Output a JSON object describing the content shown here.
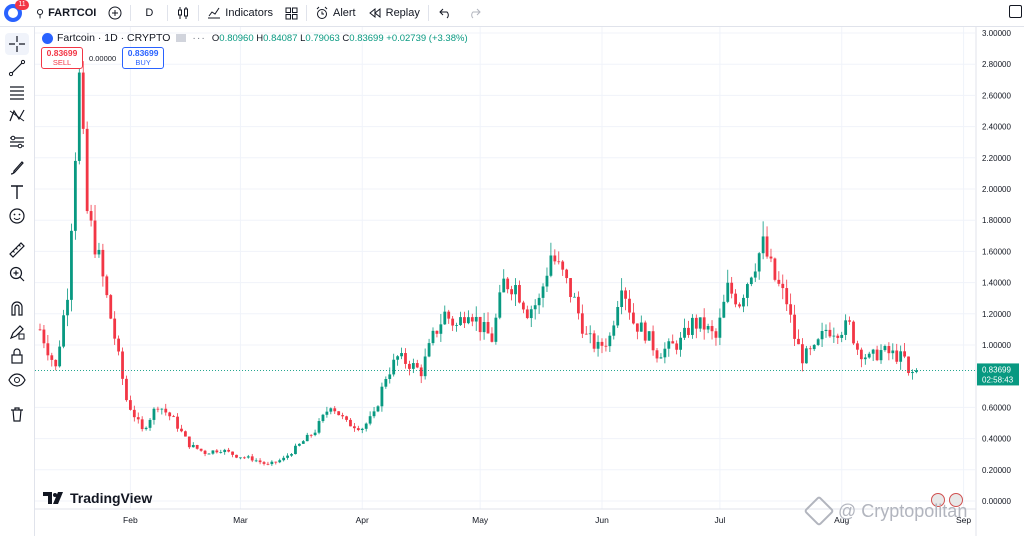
{
  "topbar": {
    "notifications": "11",
    "symbol": "FARTCOI",
    "interval": "D",
    "indicators_label": "Indicators",
    "alert_label": "Alert",
    "replay_label": "Replay"
  },
  "legend": {
    "title": "Fartcoin · 1D · CRYPTO",
    "open_key": "O",
    "open": "0.80960",
    "high_key": "H",
    "high": "0.84087",
    "low_key": "L",
    "low": "0.79063",
    "close_key": "C",
    "close": "0.83699",
    "change": "+0.02739 (+3.38%)"
  },
  "trade": {
    "sell_price": "0.83699",
    "sell_label": "SELL",
    "spread": "0.00000",
    "buy_price": "0.83699",
    "buy_label": "BUY"
  },
  "brand": {
    "logo_text": "TradingView"
  },
  "watermark": {
    "text": "@ Cryptopolitan"
  },
  "chart_data": {
    "type": "candlestick",
    "ylim": [
      0,
      3.0
    ],
    "y_ticks": [
      {
        "v": 3.0,
        "label": "3.00000"
      },
      {
        "v": 2.8,
        "label": "2.80000"
      },
      {
        "v": 2.6,
        "label": "2.60000"
      },
      {
        "v": 2.4,
        "label": "2.40000"
      },
      {
        "v": 2.2,
        "label": "2.20000"
      },
      {
        "v": 2.0,
        "label": "2.00000"
      },
      {
        "v": 1.8,
        "label": "1.80000"
      },
      {
        "v": 1.6,
        "label": "1.60000"
      },
      {
        "v": 1.4,
        "label": "1.40000"
      },
      {
        "v": 1.2,
        "label": "1.20000"
      },
      {
        "v": 1.0,
        "label": "1.00000"
      },
      {
        "v": 0.6,
        "label": "0.60000"
      },
      {
        "v": 0.4,
        "label": "0.40000"
      },
      {
        "v": 0.2,
        "label": "0.20000"
      },
      {
        "v": 0.0,
        "label": "0.00000"
      }
    ],
    "x_ticks": [
      {
        "day": 23,
        "label": "Feb"
      },
      {
        "day": 51,
        "label": "Mar"
      },
      {
        "day": 82,
        "label": "Apr"
      },
      {
        "day": 112,
        "label": "May"
      },
      {
        "day": 143,
        "label": "Jun"
      },
      {
        "day": 173,
        "label": "Jul"
      },
      {
        "day": 204,
        "label": "Aug"
      },
      {
        "day": 235,
        "label": "Sep"
      }
    ],
    "last_price": {
      "value": 0.83699,
      "label": "0.83699",
      "countdown": "02:58:43"
    },
    "colors": {
      "up": "#089981",
      "down": "#f23645",
      "grid": "#f0f3fa",
      "axis_text": "#131722"
    },
    "keypoints": [
      [
        0,
        1.1
      ],
      [
        4,
        0.85
      ],
      [
        7,
        1.35
      ],
      [
        10,
        2.7
      ],
      [
        12,
        1.85
      ],
      [
        15,
        1.55
      ],
      [
        19,
        1.05
      ],
      [
        22,
        0.65
      ],
      [
        26,
        0.45
      ],
      [
        30,
        0.62
      ],
      [
        34,
        0.52
      ],
      [
        38,
        0.36
      ],
      [
        42,
        0.31
      ],
      [
        46,
        0.33
      ],
      [
        50,
        0.29
      ],
      [
        54,
        0.27
      ],
      [
        58,
        0.23
      ],
      [
        62,
        0.27
      ],
      [
        66,
        0.36
      ],
      [
        70,
        0.45
      ],
      [
        74,
        0.62
      ],
      [
        78,
        0.5
      ],
      [
        82,
        0.47
      ],
      [
        85,
        0.55
      ],
      [
        88,
        0.8
      ],
      [
        91,
        0.92
      ],
      [
        94,
        0.88
      ],
      [
        97,
        0.83
      ],
      [
        100,
        1.05
      ],
      [
        103,
        1.2
      ],
      [
        106,
        1.12
      ],
      [
        109,
        1.24
      ],
      [
        112,
        1.12
      ],
      [
        115,
        1.04
      ],
      [
        118,
        1.4
      ],
      [
        121,
        1.38
      ],
      [
        124,
        1.22
      ],
      [
        127,
        1.28
      ],
      [
        130,
        1.58
      ],
      [
        133,
        1.45
      ],
      [
        136,
        1.28
      ],
      [
        139,
        1.05
      ],
      [
        142,
        0.98
      ],
      [
        145,
        1.05
      ],
      [
        148,
        1.42
      ],
      [
        151,
        1.15
      ],
      [
        154,
        1.08
      ],
      [
        157,
        0.95
      ],
      [
        160,
        0.98
      ],
      [
        163,
        1.02
      ],
      [
        166,
        1.14
      ],
      [
        169,
        1.12
      ],
      [
        172,
        1.04
      ],
      [
        175,
        1.36
      ],
      [
        178,
        1.28
      ],
      [
        181,
        1.48
      ],
      [
        184,
        1.64
      ],
      [
        187,
        1.42
      ],
      [
        190,
        1.28
      ],
      [
        192,
        1.05
      ],
      [
        194,
        0.92
      ],
      [
        197,
        0.96
      ],
      [
        200,
        1.1
      ],
      [
        203,
        1.1
      ],
      [
        206,
        1.12
      ],
      [
        208,
        0.98
      ],
      [
        211,
        0.91
      ],
      [
        214,
        0.96
      ],
      [
        217,
        0.94
      ],
      [
        220,
        0.91
      ],
      [
        221,
        0.8
      ],
      [
        223,
        0.84
      ]
    ]
  }
}
